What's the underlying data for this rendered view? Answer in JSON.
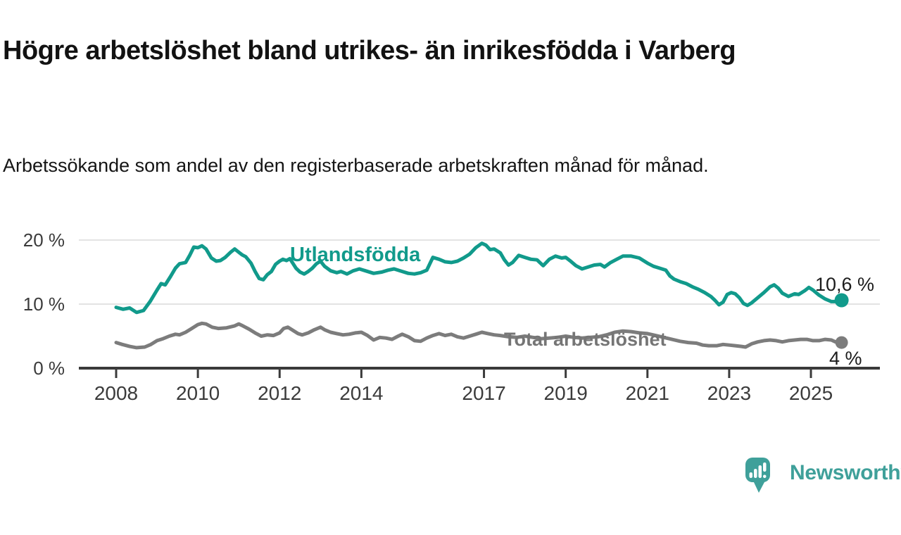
{
  "title": "Högre arbetslöshet bland utrikes- än inrikesfödda i Varberg",
  "subtitle": "Arbetssökande som andel av den registerbaserade arbetskraften månad för månad.",
  "branding": {
    "name": "Newsworthy",
    "logo_icon": "speech-bubble-bar-chart",
    "logo_color": "#3fa09a"
  },
  "colors": {
    "series_foreign_born": "#119a8b",
    "series_total": "#7c7c7c",
    "axis": "#3b3b3b",
    "gridline": "#e3e3e3",
    "text": "#121212"
  },
  "chart_data": {
    "type": "line",
    "x_unit": "year (monthly values)",
    "grid": "horizontal",
    "legend_position": "inline-labels",
    "xlim": [
      2008,
      2025.75
    ],
    "ylim": [
      0,
      20
    ],
    "x_ticks": [
      "2008",
      "2010",
      "2012",
      "2014",
      "2017",
      "2019",
      "2021",
      "2023",
      "2025"
    ],
    "x_tick_years": [
      2008,
      2010,
      2012,
      2014,
      2017,
      2019,
      2021,
      2023,
      2025
    ],
    "y_ticks": [
      {
        "value": 0,
        "label": "0 %"
      },
      {
        "value": 10,
        "label": "10 %"
      },
      {
        "value": 20,
        "label": "20 %"
      }
    ],
    "series": [
      {
        "name": "Utlandsfödda",
        "color": "#119a8b",
        "end_label": "10,6 %",
        "end_value": 10.6,
        "points": [
          [
            2008.0,
            9.5
          ],
          [
            2008.17,
            9.2
          ],
          [
            2008.33,
            9.4
          ],
          [
            2008.5,
            8.7
          ],
          [
            2008.67,
            9.0
          ],
          [
            2008.83,
            10.4
          ],
          [
            2009.0,
            12.2
          ],
          [
            2009.1,
            13.2
          ],
          [
            2009.2,
            13.0
          ],
          [
            2009.33,
            14.3
          ],
          [
            2009.45,
            15.6
          ],
          [
            2009.55,
            16.3
          ],
          [
            2009.7,
            16.5
          ],
          [
            2009.8,
            17.6
          ],
          [
            2009.9,
            18.9
          ],
          [
            2010.0,
            18.8
          ],
          [
            2010.1,
            19.1
          ],
          [
            2010.2,
            18.6
          ],
          [
            2010.33,
            17.2
          ],
          [
            2010.45,
            16.7
          ],
          [
            2010.55,
            16.8
          ],
          [
            2010.67,
            17.3
          ],
          [
            2010.8,
            18.1
          ],
          [
            2010.9,
            18.6
          ],
          [
            2011.0,
            18.1
          ],
          [
            2011.08,
            17.7
          ],
          [
            2011.17,
            17.4
          ],
          [
            2011.3,
            16.4
          ],
          [
            2011.4,
            15.1
          ],
          [
            2011.5,
            14.0
          ],
          [
            2011.6,
            13.8
          ],
          [
            2011.7,
            14.6
          ],
          [
            2011.8,
            15.1
          ],
          [
            2011.9,
            16.2
          ],
          [
            2012.0,
            16.7
          ],
          [
            2012.08,
            17.0
          ],
          [
            2012.17,
            16.8
          ],
          [
            2012.25,
            17.1
          ],
          [
            2012.4,
            15.6
          ],
          [
            2012.5,
            15.0
          ],
          [
            2012.6,
            14.7
          ],
          [
            2012.7,
            15.1
          ],
          [
            2012.8,
            15.6
          ],
          [
            2012.9,
            16.3
          ],
          [
            2013.0,
            16.7
          ],
          [
            2013.1,
            15.9
          ],
          [
            2013.25,
            15.2
          ],
          [
            2013.4,
            14.9
          ],
          [
            2013.5,
            15.1
          ],
          [
            2013.65,
            14.7
          ],
          [
            2013.8,
            15.2
          ],
          [
            2013.95,
            15.5
          ],
          [
            2014.1,
            15.2
          ],
          [
            2014.3,
            14.8
          ],
          [
            2014.5,
            15.0
          ],
          [
            2014.65,
            15.3
          ],
          [
            2014.8,
            15.5
          ],
          [
            2015.0,
            15.1
          ],
          [
            2015.15,
            14.8
          ],
          [
            2015.3,
            14.7
          ],
          [
            2015.45,
            14.9
          ],
          [
            2015.6,
            15.3
          ],
          [
            2015.75,
            17.3
          ],
          [
            2015.9,
            17.0
          ],
          [
            2016.05,
            16.6
          ],
          [
            2016.2,
            16.5
          ],
          [
            2016.35,
            16.7
          ],
          [
            2016.5,
            17.2
          ],
          [
            2016.65,
            17.8
          ],
          [
            2016.8,
            18.8
          ],
          [
            2016.95,
            19.5
          ],
          [
            2017.05,
            19.2
          ],
          [
            2017.15,
            18.5
          ],
          [
            2017.25,
            18.6
          ],
          [
            2017.4,
            18.0
          ],
          [
            2017.5,
            16.9
          ],
          [
            2017.6,
            16.1
          ],
          [
            2017.7,
            16.5
          ],
          [
            2017.85,
            17.6
          ],
          [
            2018.0,
            17.3
          ],
          [
            2018.15,
            17.0
          ],
          [
            2018.3,
            16.9
          ],
          [
            2018.45,
            16.0
          ],
          [
            2018.6,
            17.0
          ],
          [
            2018.75,
            17.5
          ],
          [
            2018.9,
            17.2
          ],
          [
            2019.0,
            17.3
          ],
          [
            2019.1,
            16.8
          ],
          [
            2019.25,
            16.0
          ],
          [
            2019.4,
            15.5
          ],
          [
            2019.55,
            15.8
          ],
          [
            2019.7,
            16.1
          ],
          [
            2019.85,
            16.2
          ],
          [
            2019.95,
            15.8
          ],
          [
            2020.1,
            16.5
          ],
          [
            2020.25,
            17.0
          ],
          [
            2020.4,
            17.5
          ],
          [
            2020.6,
            17.5
          ],
          [
            2020.8,
            17.2
          ],
          [
            2021.0,
            16.4
          ],
          [
            2021.15,
            15.9
          ],
          [
            2021.3,
            15.6
          ],
          [
            2021.45,
            15.3
          ],
          [
            2021.55,
            14.4
          ],
          [
            2021.65,
            13.9
          ],
          [
            2021.8,
            13.5
          ],
          [
            2021.95,
            13.2
          ],
          [
            2022.1,
            12.7
          ],
          [
            2022.25,
            12.3
          ],
          [
            2022.4,
            11.8
          ],
          [
            2022.55,
            11.2
          ],
          [
            2022.65,
            10.6
          ],
          [
            2022.75,
            9.9
          ],
          [
            2022.85,
            10.3
          ],
          [
            2022.95,
            11.5
          ],
          [
            2023.05,
            11.8
          ],
          [
            2023.15,
            11.6
          ],
          [
            2023.25,
            11.0
          ],
          [
            2023.35,
            10.1
          ],
          [
            2023.45,
            9.8
          ],
          [
            2023.55,
            10.2
          ],
          [
            2023.7,
            11.0
          ],
          [
            2023.85,
            11.8
          ],
          [
            2024.0,
            12.7
          ],
          [
            2024.1,
            13.0
          ],
          [
            2024.2,
            12.5
          ],
          [
            2024.3,
            11.7
          ],
          [
            2024.45,
            11.2
          ],
          [
            2024.6,
            11.6
          ],
          [
            2024.7,
            11.5
          ],
          [
            2024.85,
            12.1
          ],
          [
            2024.95,
            12.6
          ],
          [
            2025.05,
            12.2
          ],
          [
            2025.2,
            11.4
          ],
          [
            2025.35,
            10.8
          ],
          [
            2025.5,
            10.4
          ],
          [
            2025.6,
            10.4
          ],
          [
            2025.75,
            10.6
          ]
        ]
      },
      {
        "name": "Total arbetslöshet",
        "color": "#7c7c7c",
        "end_label": "4 %",
        "end_value": 4.0,
        "points": [
          [
            2008.0,
            4.0
          ],
          [
            2008.15,
            3.7
          ],
          [
            2008.33,
            3.4
          ],
          [
            2008.5,
            3.2
          ],
          [
            2008.7,
            3.3
          ],
          [
            2008.85,
            3.7
          ],
          [
            2009.0,
            4.3
          ],
          [
            2009.15,
            4.6
          ],
          [
            2009.3,
            5.0
          ],
          [
            2009.45,
            5.3
          ],
          [
            2009.55,
            5.2
          ],
          [
            2009.7,
            5.6
          ],
          [
            2009.85,
            6.2
          ],
          [
            2010.0,
            6.8
          ],
          [
            2010.1,
            7.0
          ],
          [
            2010.2,
            6.9
          ],
          [
            2010.35,
            6.4
          ],
          [
            2010.5,
            6.2
          ],
          [
            2010.7,
            6.3
          ],
          [
            2010.9,
            6.6
          ],
          [
            2011.0,
            6.9
          ],
          [
            2011.1,
            6.6
          ],
          [
            2011.25,
            6.1
          ],
          [
            2011.4,
            5.5
          ],
          [
            2011.55,
            5.0
          ],
          [
            2011.7,
            5.2
          ],
          [
            2011.85,
            5.1
          ],
          [
            2012.0,
            5.5
          ],
          [
            2012.1,
            6.2
          ],
          [
            2012.2,
            6.4
          ],
          [
            2012.3,
            6.0
          ],
          [
            2012.45,
            5.4
          ],
          [
            2012.55,
            5.2
          ],
          [
            2012.7,
            5.5
          ],
          [
            2012.85,
            6.0
          ],
          [
            2013.0,
            6.4
          ],
          [
            2013.1,
            6.0
          ],
          [
            2013.25,
            5.6
          ],
          [
            2013.4,
            5.4
          ],
          [
            2013.55,
            5.2
          ],
          [
            2013.7,
            5.3
          ],
          [
            2013.85,
            5.5
          ],
          [
            2014.0,
            5.6
          ],
          [
            2014.15,
            5.1
          ],
          [
            2014.3,
            4.4
          ],
          [
            2014.45,
            4.8
          ],
          [
            2014.6,
            4.7
          ],
          [
            2014.75,
            4.5
          ],
          [
            2014.9,
            5.0
          ],
          [
            2015.0,
            5.3
          ],
          [
            2015.15,
            4.9
          ],
          [
            2015.3,
            4.3
          ],
          [
            2015.45,
            4.2
          ],
          [
            2015.6,
            4.7
          ],
          [
            2015.75,
            5.1
          ],
          [
            2015.9,
            5.4
          ],
          [
            2016.05,
            5.1
          ],
          [
            2016.2,
            5.3
          ],
          [
            2016.35,
            4.9
          ],
          [
            2016.5,
            4.7
          ],
          [
            2016.65,
            5.0
          ],
          [
            2016.8,
            5.3
          ],
          [
            2016.95,
            5.6
          ],
          [
            2017.1,
            5.4
          ],
          [
            2017.25,
            5.2
          ],
          [
            2017.4,
            5.1
          ],
          [
            2017.6,
            4.9
          ],
          [
            2017.8,
            4.8
          ],
          [
            2018.0,
            5.0
          ],
          [
            2018.2,
            4.8
          ],
          [
            2018.4,
            4.6
          ],
          [
            2018.6,
            4.7
          ],
          [
            2018.8,
            4.8
          ],
          [
            2019.0,
            5.0
          ],
          [
            2019.2,
            4.8
          ],
          [
            2019.4,
            4.7
          ],
          [
            2019.6,
            4.8
          ],
          [
            2019.8,
            4.9
          ],
          [
            2020.0,
            5.2
          ],
          [
            2020.2,
            5.6
          ],
          [
            2020.4,
            5.8
          ],
          [
            2020.6,
            5.7
          ],
          [
            2020.8,
            5.5
          ],
          [
            2021.0,
            5.4
          ],
          [
            2021.2,
            5.1
          ],
          [
            2021.4,
            4.8
          ],
          [
            2021.6,
            4.5
          ],
          [
            2021.8,
            4.2
          ],
          [
            2022.0,
            4.0
          ],
          [
            2022.2,
            3.9
          ],
          [
            2022.35,
            3.6
          ],
          [
            2022.5,
            3.5
          ],
          [
            2022.7,
            3.5
          ],
          [
            2022.85,
            3.7
          ],
          [
            2023.0,
            3.6
          ],
          [
            2023.15,
            3.5
          ],
          [
            2023.3,
            3.4
          ],
          [
            2023.4,
            3.3
          ],
          [
            2023.55,
            3.8
          ],
          [
            2023.7,
            4.1
          ],
          [
            2023.85,
            4.3
          ],
          [
            2024.0,
            4.4
          ],
          [
            2024.15,
            4.3
          ],
          [
            2024.3,
            4.1
          ],
          [
            2024.45,
            4.3
          ],
          [
            2024.6,
            4.4
          ],
          [
            2024.75,
            4.5
          ],
          [
            2024.9,
            4.5
          ],
          [
            2025.05,
            4.3
          ],
          [
            2025.2,
            4.3
          ],
          [
            2025.35,
            4.5
          ],
          [
            2025.5,
            4.4
          ],
          [
            2025.6,
            4.1
          ],
          [
            2025.75,
            4.0
          ]
        ]
      }
    ]
  }
}
